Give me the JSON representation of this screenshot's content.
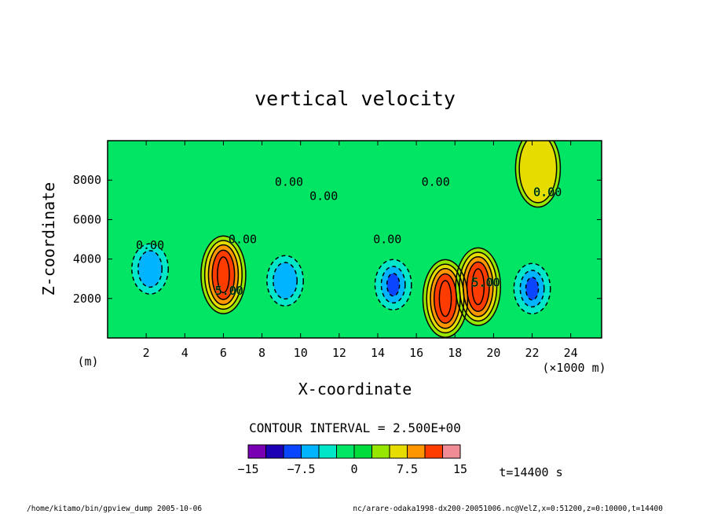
{
  "chart_data": {
    "type": "heatmap",
    "title": "vertical velocity",
    "xlabel": "X-coordinate",
    "ylabel": "Z-coordinate",
    "x_unit": "(×1000 m)",
    "y_unit": "(m)",
    "xlim": [
      0,
      25.6
    ],
    "ylim": [
      0,
      10000
    ],
    "x_ticks": [
      2,
      4,
      6,
      8,
      10,
      12,
      14,
      16,
      18,
      20,
      22,
      24
    ],
    "y_ticks": [
      2000,
      4000,
      6000,
      8000
    ],
    "contour_interval_text": "CONTOUR INTERVAL = 2.500E+00",
    "contour_labels": [
      {
        "text": "0.00",
        "x": 2.2,
        "y": 4500
      },
      {
        "text": "0.00",
        "x": 7.0,
        "y": 4800
      },
      {
        "text": "0.00",
        "x": 9.4,
        "y": 7700
      },
      {
        "text": "0.00",
        "x": 11.2,
        "y": 7000
      },
      {
        "text": "0.00",
        "x": 14.5,
        "y": 4800
      },
      {
        "text": "0.00",
        "x": 17.0,
        "y": 7700
      },
      {
        "text": "0.00",
        "x": 22.8,
        "y": 7200
      },
      {
        "text": "5.00",
        "x": 6.3,
        "y": 2200
      },
      {
        "text": "5.00",
        "x": 19.6,
        "y": 2600
      }
    ],
    "features": [
      {
        "kind": "updraft",
        "x": 6.0,
        "y": 3200,
        "peak": 15
      },
      {
        "kind": "updraft",
        "x": 17.5,
        "y": 2000,
        "peak": 15
      },
      {
        "kind": "updraft",
        "x": 19.2,
        "y": 2600,
        "peak": 12.5
      },
      {
        "kind": "downdraft",
        "x": 2.2,
        "y": 3500,
        "peak": -5
      },
      {
        "kind": "downdraft",
        "x": 9.2,
        "y": 2900,
        "peak": -5
      },
      {
        "kind": "downdraft",
        "x": 14.8,
        "y": 2700,
        "peak": -7.5
      },
      {
        "kind": "downdraft",
        "x": 22.0,
        "y": 2500,
        "peak": -7.5
      },
      {
        "kind": "updraft",
        "x": 22.3,
        "y": 8600,
        "peak": 5
      }
    ],
    "colorbar": {
      "colors": [
        "#7a00b4",
        "#1e00b4",
        "#0a46ff",
        "#00b4ff",
        "#00e6c8",
        "#00e664",
        "#00dc3c",
        "#96e600",
        "#e6dc00",
        "#ff9600",
        "#ff3c00",
        "#f08c96"
      ],
      "tick_labels": [
        "−15",
        "−7.5",
        "0",
        "7.5",
        "15"
      ],
      "levels": [
        -15,
        15
      ]
    },
    "time_label": "t=14400 s"
  },
  "footer": {
    "left": "/home/kitamo/bin/gpview_dump  2005-10-06",
    "right": "nc/arare-odaka1998-dx200-20051006.nc@VelZ,x=0:51200,z=0:10000,t=14400"
  }
}
